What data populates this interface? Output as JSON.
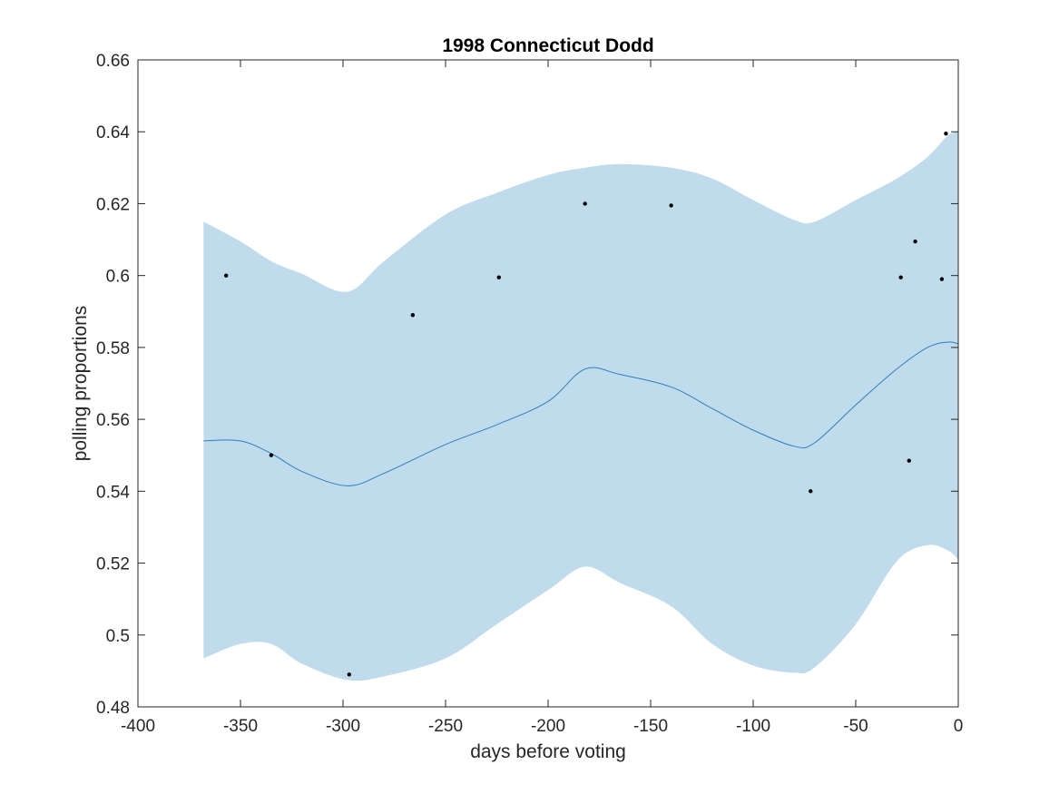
{
  "chart_data": {
    "type": "line",
    "title": "1998 Connecticut Dodd",
    "xlabel": "days before voting",
    "ylabel": "polling proportions",
    "xlim": [
      -400,
      0
    ],
    "ylim": [
      0.48,
      0.66
    ],
    "xticks": [
      -400,
      -350,
      -300,
      -250,
      -200,
      -150,
      -100,
      -50,
      0
    ],
    "xtick_labels": [
      "-400",
      "-350",
      "-300",
      "-250",
      "-200",
      "-150",
      "-100",
      "-50",
      "0"
    ],
    "yticks": [
      0.48,
      0.5,
      0.52,
      0.54,
      0.56,
      0.58,
      0.6,
      0.62,
      0.64,
      0.66
    ],
    "ytick_labels": [
      "0.48",
      "0.5",
      "0.52",
      "0.54",
      "0.56",
      "0.58",
      "0.6",
      "0.62",
      "0.64",
      "0.66"
    ],
    "grid": false,
    "colors": {
      "band": "#c0dcec",
      "line": "#2e7ebf",
      "points": "#000000",
      "axes": "#262626"
    },
    "series": [
      {
        "type": "area",
        "x": [
          -368,
          -350,
          -335,
          -320,
          -298,
          -280,
          -250,
          -225,
          -200,
          -182,
          -165,
          -140,
          -120,
          -100,
          -80,
          -70,
          -50,
          -30,
          -15,
          -5,
          0
        ],
        "lower": [
          0.4935,
          0.4975,
          0.4975,
          0.492,
          0.4875,
          0.4885,
          0.4935,
          0.503,
          0.5125,
          0.519,
          0.5145,
          0.508,
          0.4975,
          0.4915,
          0.4895,
          0.491,
          0.503,
          0.5205,
          0.525,
          0.5235,
          0.521
        ],
        "upper": [
          0.615,
          0.6095,
          0.604,
          0.6005,
          0.5955,
          0.604,
          0.617,
          0.623,
          0.628,
          0.63,
          0.631,
          0.63,
          0.627,
          0.621,
          0.6155,
          0.615,
          0.621,
          0.627,
          0.633,
          0.639,
          0.64
        ]
      },
      {
        "type": "line",
        "x": [
          -368,
          -350,
          -335,
          -320,
          -298,
          -280,
          -250,
          -225,
          -200,
          -182,
          -165,
          -140,
          -120,
          -100,
          -80,
          -70,
          -50,
          -30,
          -15,
          -5,
          0
        ],
        "y": [
          0.554,
          0.554,
          0.5505,
          0.5455,
          0.5415,
          0.545,
          0.553,
          0.5585,
          0.565,
          0.574,
          0.5725,
          0.569,
          0.563,
          0.557,
          0.5525,
          0.5535,
          0.564,
          0.574,
          0.58,
          0.5815,
          0.581
        ]
      },
      {
        "type": "scatter",
        "x": [
          -357,
          -335,
          -297,
          -266,
          -224,
          -182,
          -140,
          -72,
          -28,
          -24,
          -21,
          -8,
          -6
        ],
        "y": [
          0.6,
          0.55,
          0.489,
          0.589,
          0.5995,
          0.62,
          0.6195,
          0.54,
          0.5995,
          0.5485,
          0.6095,
          0.599,
          0.6395
        ]
      }
    ]
  }
}
